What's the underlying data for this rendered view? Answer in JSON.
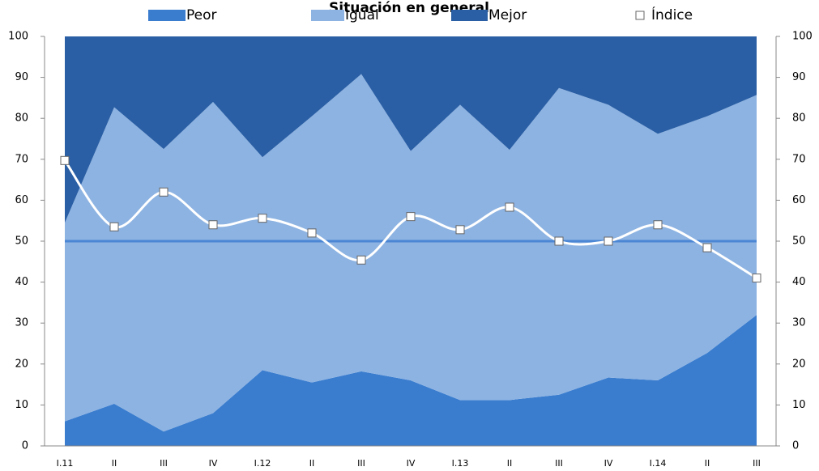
{
  "chart_data": {
    "type": "stacked-area",
    "title": "Situación en general",
    "categories": [
      "I.11",
      "II",
      "III",
      "IV",
      "I.12",
      "II",
      "III",
      "IV",
      "I.13",
      "II",
      "III",
      "IV",
      "I.14",
      "II",
      "III"
    ],
    "series": [
      {
        "name": "Peor",
        "color": "#3a7dcf",
        "values": [
          6,
          10.3,
          3.5,
          8,
          18.5,
          15.5,
          18.2,
          16,
          11.2,
          11.2,
          12.5,
          16.7,
          16,
          22.7,
          32
        ]
      },
      {
        "name": "Igual",
        "color": "#8db3e2",
        "values": [
          48.5,
          72.4,
          69,
          76,
          52,
          65,
          72.6,
          56,
          72.1,
          61.1,
          74.9,
          66.6,
          60.2,
          57.8,
          53.7
        ]
      },
      {
        "name": "Mejor",
        "color": "#2a5fa5",
        "values": [
          45.5,
          17.3,
          27.5,
          16,
          29.5,
          19.5,
          9.2,
          28,
          16.7,
          27.7,
          12.6,
          16.7,
          23.8,
          19.5,
          14.3
        ]
      }
    ],
    "line_series": {
      "name": "Índice",
      "color": "#ffffff",
      "values": [
        69.7,
        53.5,
        62,
        54,
        55.6,
        52,
        45.4,
        56,
        52.8,
        58.3,
        50,
        50,
        54,
        48.4,
        41
      ]
    },
    "reference_line": {
      "value": 50,
      "color": "#4a86d4"
    },
    "ylim": [
      0,
      100
    ],
    "yticks": [
      0,
      10,
      20,
      30,
      40,
      50,
      60,
      70,
      80,
      90,
      100
    ],
    "y2lim": [
      0,
      100
    ],
    "y2ticks": [
      0,
      10,
      20,
      30,
      40,
      50,
      60,
      70,
      80,
      90,
      100
    ],
    "legend": "top"
  }
}
